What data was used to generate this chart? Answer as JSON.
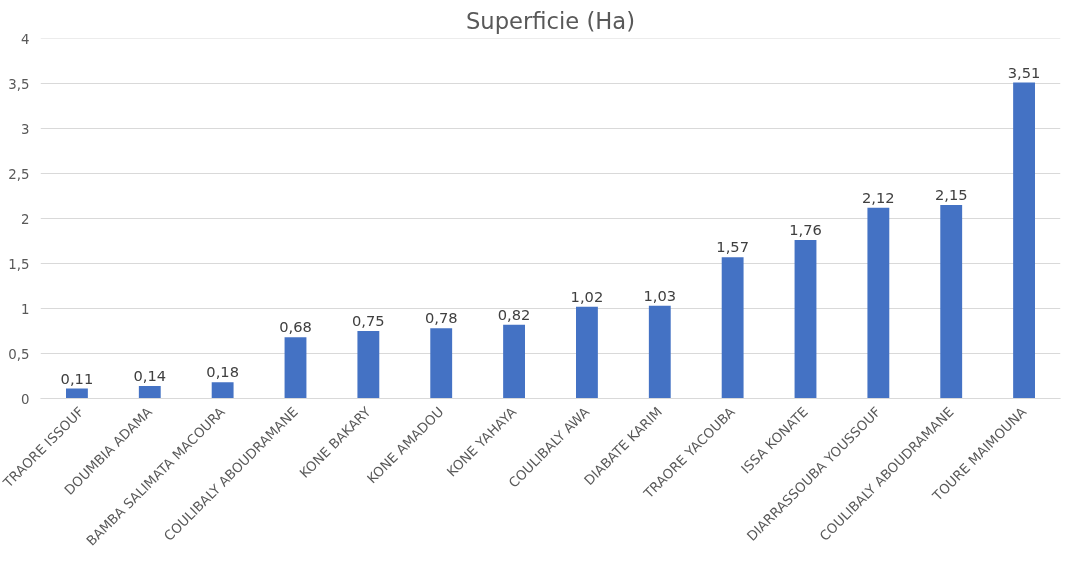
{
  "chart_data": {
    "type": "bar",
    "title": "Superficie (Ha)",
    "categories": [
      "TRAORE ISSOUF",
      "DOUMBIA ADAMA",
      "BAMBA SALIMATA MACOURA",
      "COULIBALY ABOUDRAMANE",
      "KONE BAKARY",
      "KONE AMADOU",
      "KONE YAHAYA",
      "COULIBALY AWA",
      "DIABATE KARIM",
      "TRAORE YACOUBA",
      "ISSA KONATE",
      "DIARRASSOUBA YOUSSOUF",
      "COULIBALY ABOUDRAMANE",
      "TOURE MAIMOUNA"
    ],
    "values": [
      0.11,
      0.14,
      0.18,
      0.68,
      0.75,
      0.78,
      0.82,
      1.02,
      1.03,
      1.57,
      1.76,
      2.12,
      2.15,
      3.51
    ],
    "value_labels": [
      "0,11",
      "0,14",
      "0,18",
      "0,68",
      "0,75",
      "0,78",
      "0,82",
      "1,02",
      "1,03",
      "1,57",
      "1,76",
      "2,12",
      "2,15",
      "3,51"
    ],
    "color": "#4472c4",
    "ylim": [
      0,
      4
    ],
    "yticks": [
      0,
      {
        "value": 0.5,
        "label": "0,5"
      },
      1,
      {
        "value": 1.5,
        "label": "1,5"
      },
      2,
      {
        "value": 2.5,
        "label": "2,5"
      },
      3,
      {
        "value": 3.5,
        "label": "3,5"
      },
      4
    ],
    "grid": "y"
  }
}
